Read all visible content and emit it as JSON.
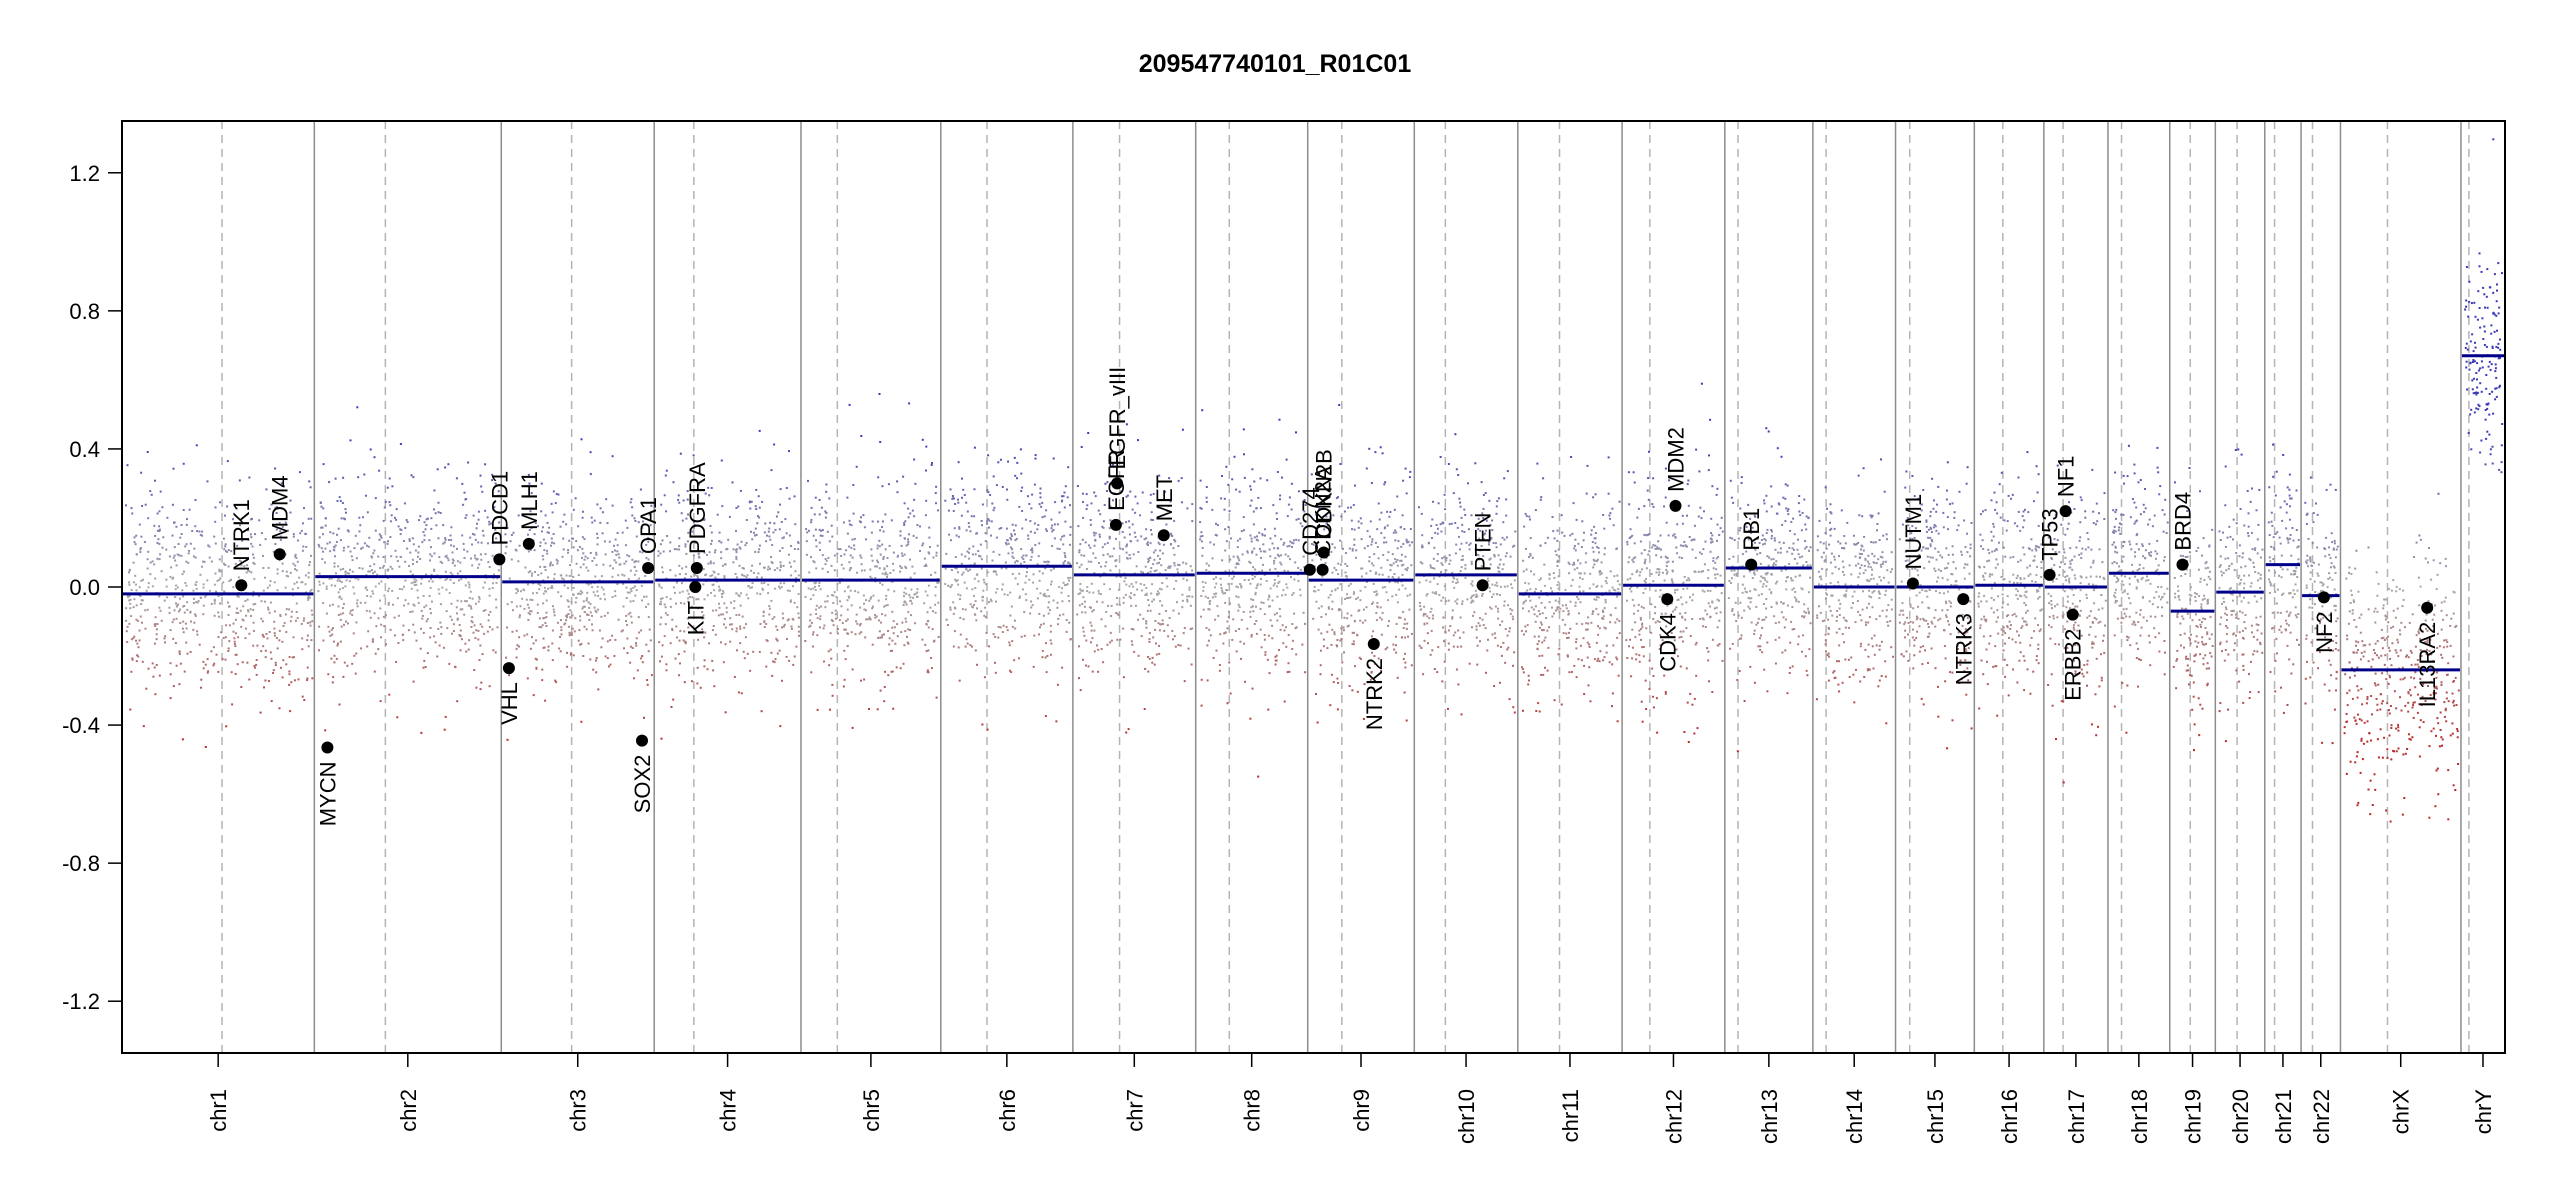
{
  "chart_data": {
    "type": "scatter",
    "title": "209547740101_R01C01",
    "xlabel": "",
    "ylabel": "",
    "ylim": [
      -1.35,
      1.35
    ],
    "yticks": [
      -1.2,
      -0.8,
      -0.4,
      0.0,
      0.4,
      0.8,
      1.2
    ],
    "ytick_labels": [
      "-1.2",
      "-0.8",
      "-0.4",
      "0.0",
      "0.4",
      "0.8",
      "1.2"
    ],
    "colors": {
      "gain": "#3a3ab8",
      "loss": "#b82a2a",
      "neutral": "#a8a8a8",
      "segment": "#00008b",
      "chrom_boundary": "#8c8c8c",
      "centromere": "#b4b4b4"
    },
    "chromosomes": [
      {
        "name": "chr1",
        "length_mb": 249,
        "centromere_frac": 0.52,
        "segment": -0.02
      },
      {
        "name": "chr2",
        "length_mb": 242,
        "centromere_frac": 0.38,
        "segment": 0.03
      },
      {
        "name": "chr3",
        "length_mb": 198,
        "centromere_frac": 0.46,
        "segment": 0.015
      },
      {
        "name": "chr4",
        "length_mb": 190,
        "centromere_frac": 0.27,
        "segment": 0.02
      },
      {
        "name": "chr5",
        "length_mb": 181,
        "centromere_frac": 0.26,
        "segment": 0.02
      },
      {
        "name": "chr6",
        "length_mb": 171,
        "centromere_frac": 0.35,
        "segment": 0.06
      },
      {
        "name": "chr7",
        "length_mb": 159,
        "centromere_frac": 0.38,
        "segment": 0.035
      },
      {
        "name": "chr8",
        "length_mb": 145,
        "centromere_frac": 0.3,
        "segment": 0.04
      },
      {
        "name": "chr9",
        "length_mb": 138,
        "centromere_frac": 0.32,
        "segment": 0.02
      },
      {
        "name": "chr10",
        "length_mb": 134,
        "centromere_frac": 0.3,
        "segment": 0.035
      },
      {
        "name": "chr11",
        "length_mb": 135,
        "centromere_frac": 0.4,
        "segment": -0.02
      },
      {
        "name": "chr12",
        "length_mb": 133,
        "centromere_frac": 0.27,
        "segment": 0.005
      },
      {
        "name": "chr13",
        "length_mb": 114,
        "centromere_frac": 0.15,
        "segment": 0.055
      },
      {
        "name": "chr14",
        "length_mb": 107,
        "centromere_frac": 0.16,
        "segment": 0.0
      },
      {
        "name": "chr15",
        "length_mb": 102,
        "centromere_frac": 0.18,
        "segment": 0.0
      },
      {
        "name": "chr16",
        "length_mb": 90,
        "centromere_frac": 0.41,
        "segment": 0.005
      },
      {
        "name": "chr17",
        "length_mb": 83,
        "centromere_frac": 0.3,
        "segment": 0.0
      },
      {
        "name": "chr18",
        "length_mb": 80,
        "centromere_frac": 0.22,
        "segment": 0.04
      },
      {
        "name": "chr19",
        "length_mb": 59,
        "centromere_frac": 0.45,
        "segment": -0.07
      },
      {
        "name": "chr20",
        "length_mb": 64,
        "centromere_frac": 0.44,
        "segment": -0.015
      },
      {
        "name": "chr21",
        "length_mb": 47,
        "centromere_frac": 0.27,
        "segment": 0.065
      },
      {
        "name": "chr22",
        "length_mb": 51,
        "centromere_frac": 0.29,
        "segment": -0.025
      },
      {
        "name": "chrX",
        "length_mb": 156,
        "centromere_frac": 0.39,
        "segment": -0.24
      },
      {
        "name": "chrY",
        "length_mb": 57,
        "centromere_frac": 0.18,
        "segment": 0.67
      }
    ],
    "genes": [
      {
        "name": "NTRK1",
        "chrom": "chr1",
        "pos_frac": 0.62,
        "value": 0.005,
        "side": "above"
      },
      {
        "name": "MDM4",
        "chrom": "chr1",
        "pos_frac": 0.82,
        "value": 0.095,
        "side": "above"
      },
      {
        "name": "MYCN",
        "chrom": "chr2",
        "pos_frac": 0.07,
        "value": -0.465,
        "side": "below"
      },
      {
        "name": "PDCD1",
        "chrom": "chr2",
        "pos_frac": 0.99,
        "value": 0.08,
        "side": "above"
      },
      {
        "name": "VHL",
        "chrom": "chr3",
        "pos_frac": 0.05,
        "value": -0.235,
        "side": "below"
      },
      {
        "name": "MLH1",
        "chrom": "chr3",
        "pos_frac": 0.18,
        "value": 0.125,
        "side": "above"
      },
      {
        "name": "SOX2",
        "chrom": "chr3",
        "pos_frac": 0.92,
        "value": -0.445,
        "side": "below"
      },
      {
        "name": "OPA1",
        "chrom": "chr3",
        "pos_frac": 0.96,
        "value": 0.055,
        "side": "above"
      },
      {
        "name": "KIT",
        "chrom": "chr4",
        "pos_frac": 0.28,
        "value": 0.0,
        "side": "below"
      },
      {
        "name": "PDGFRA",
        "chrom": "chr4",
        "pos_frac": 0.29,
        "value": 0.055,
        "side": "above"
      },
      {
        "name": "EGFR",
        "chrom": "chr7",
        "pos_frac": 0.35,
        "value": 0.18,
        "side": "above"
      },
      {
        "name": "EGFR_vIII",
        "chrom": "chr7",
        "pos_frac": 0.36,
        "value": 0.3,
        "side": "above"
      },
      {
        "name": "MET",
        "chrom": "chr7",
        "pos_frac": 0.74,
        "value": 0.15,
        "side": "above"
      },
      {
        "name": "CD274",
        "chrom": "chr9",
        "pos_frac": 0.02,
        "value": 0.05,
        "side": "above"
      },
      {
        "name": "CDKN2A",
        "chrom": "chr9",
        "pos_frac": 0.14,
        "value": 0.05,
        "side": "above"
      },
      {
        "name": "CDKN2B",
        "chrom": "chr9",
        "pos_frac": 0.15,
        "value": 0.1,
        "side": "above"
      },
      {
        "name": "NTRK2",
        "chrom": "chr9",
        "pos_frac": 0.62,
        "value": -0.165,
        "side": "below"
      },
      {
        "name": "PTEN",
        "chrom": "chr10",
        "pos_frac": 0.66,
        "value": 0.005,
        "side": "above"
      },
      {
        "name": "CDK4",
        "chrom": "chr12",
        "pos_frac": 0.44,
        "value": -0.035,
        "side": "below"
      },
      {
        "name": "MDM2",
        "chrom": "chr12",
        "pos_frac": 0.52,
        "value": 0.235,
        "side": "above"
      },
      {
        "name": "RB1",
        "chrom": "chr13",
        "pos_frac": 0.3,
        "value": 0.065,
        "side": "above"
      },
      {
        "name": "NUTM1",
        "chrom": "chr15",
        "pos_frac": 0.22,
        "value": 0.01,
        "side": "above"
      },
      {
        "name": "NTRK3",
        "chrom": "chr15",
        "pos_frac": 0.86,
        "value": -0.035,
        "side": "below"
      },
      {
        "name": "TP53",
        "chrom": "chr17",
        "pos_frac": 0.09,
        "value": 0.035,
        "side": "above"
      },
      {
        "name": "NF1",
        "chrom": "chr17",
        "pos_frac": 0.34,
        "value": 0.22,
        "side": "above"
      },
      {
        "name": "ERBB2",
        "chrom": "chr17",
        "pos_frac": 0.45,
        "value": -0.08,
        "side": "below"
      },
      {
        "name": "BRD4",
        "chrom": "chr19",
        "pos_frac": 0.28,
        "value": 0.065,
        "side": "above"
      },
      {
        "name": "NF2",
        "chrom": "chr22",
        "pos_frac": 0.58,
        "value": -0.03,
        "side": "below"
      },
      {
        "name": "IL13RA2",
        "chrom": "chrX",
        "pos_frac": 0.72,
        "value": -0.06,
        "side": "below"
      }
    ]
  }
}
